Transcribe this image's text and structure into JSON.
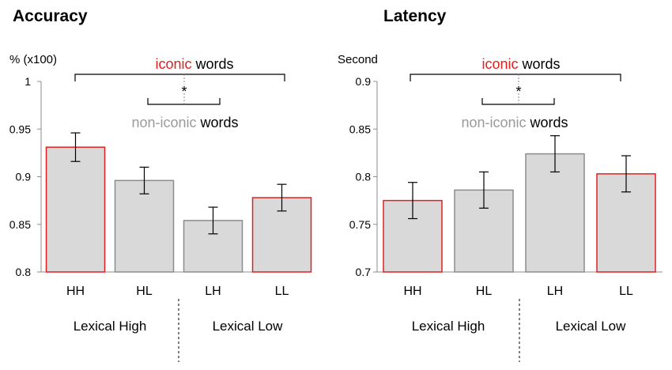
{
  "chart_data": [
    {
      "type": "bar",
      "title": "Accuracy",
      "ylabel": "% (x100)",
      "ylim": [
        0.8,
        1.0
      ],
      "yticks": [
        "0.8",
        "0.85",
        "0.9",
        "0.95",
        "1"
      ],
      "categories": [
        "HH",
        "HL",
        "LH",
        "LL"
      ],
      "values": [
        0.931,
        0.896,
        0.854,
        0.878
      ],
      "errors": [
        0.015,
        0.014,
        0.014,
        0.014
      ],
      "iconic": [
        true,
        false,
        false,
        true
      ],
      "groups": [
        "Lexical High",
        "Lexical Low"
      ],
      "annotations": {
        "iconic_word": "iconic",
        "non_iconic_word": "non-iconic",
        "words": "words",
        "star": "*"
      }
    },
    {
      "type": "bar",
      "title": "Latency",
      "ylabel": "Second",
      "ylim": [
        0.7,
        0.9
      ],
      "yticks": [
        "0.7",
        "0.75",
        "0.8",
        "0.85",
        "0.9"
      ],
      "categories": [
        "HH",
        "HL",
        "LH",
        "LL"
      ],
      "values": [
        0.775,
        0.786,
        0.824,
        0.803
      ],
      "errors": [
        0.019,
        0.019,
        0.019,
        0.019
      ],
      "iconic": [
        true,
        false,
        false,
        true
      ],
      "groups": [
        "Lexical High",
        "Lexical Low"
      ],
      "annotations": {
        "iconic_word": "iconic",
        "non_iconic_word": "non-iconic",
        "words": "words",
        "star": "*"
      }
    }
  ],
  "colors": {
    "bar_fill": "#d9d9d9",
    "iconic_edge": "#e02020",
    "noniconic_edge": "#8c8c8c",
    "iconic_text": "#e02020",
    "noniconic_text": "#9a9a9a",
    "axis": "#8c8c8c"
  }
}
